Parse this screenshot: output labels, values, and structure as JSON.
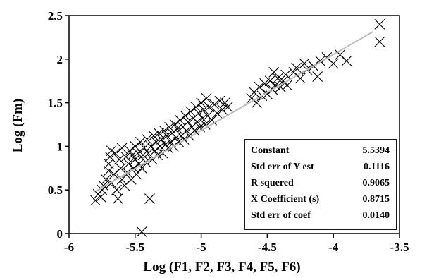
{
  "chart_data": {
    "type": "scatter",
    "title": "",
    "xlabel": "Log (F1, F2, F3, F4, F5, F6)",
    "ylabel": "Log (Fm)",
    "xlim": [
      -6,
      -3.5
    ],
    "ylim": [
      0,
      2.5
    ],
    "x_ticks": [
      "-6",
      "-5.5",
      "-5",
      "-4.5",
      "-4",
      "-3.5"
    ],
    "y_ticks": [
      "0",
      "0.5",
      "1",
      "1.5",
      "2",
      "2.5"
    ],
    "grid": false,
    "marker": "x",
    "regression": {
      "constant": 5.5394,
      "slope": 0.8715,
      "x_range": [
        -5.8,
        -3.7
      ]
    },
    "stats_table": [
      {
        "label": "Constant",
        "value": "5.5394"
      },
      {
        "label": "Std err of Y est",
        "value": "0.1116"
      },
      {
        "label": "R squered",
        "value": "0.9065"
      },
      {
        "label": "X Coefficient (s)",
        "value": "0.8715"
      },
      {
        "label": "Std err of coef",
        "value": "0.0140"
      }
    ],
    "points": [
      [
        -5.8,
        0.38
      ],
      [
        -5.78,
        0.45
      ],
      [
        -5.76,
        0.42
      ],
      [
        -5.75,
        0.5
      ],
      [
        -5.74,
        0.55
      ],
      [
        -5.72,
        0.62
      ],
      [
        -5.7,
        0.72
      ],
      [
        -5.7,
        0.8
      ],
      [
        -5.69,
        0.88
      ],
      [
        -5.68,
        0.95
      ],
      [
        -5.68,
        0.58
      ],
      [
        -5.66,
        0.68
      ],
      [
        -5.65,
        0.92
      ],
      [
        -5.64,
        0.5
      ],
      [
        -5.63,
        0.4
      ],
      [
        -5.62,
        0.85
      ],
      [
        -5.61,
        0.75
      ],
      [
        -5.6,
        0.62
      ],
      [
        -5.6,
        0.98
      ],
      [
        -5.58,
        0.55
      ],
      [
        -5.57,
        0.88
      ],
      [
        -5.56,
        0.7
      ],
      [
        -5.55,
        0.8
      ],
      [
        -5.54,
        0.95
      ],
      [
        -5.53,
        0.62
      ],
      [
        -5.52,
        0.9
      ],
      [
        -5.51,
        0.75
      ],
      [
        -5.5,
        0.85
      ],
      [
        -5.5,
        1.0
      ],
      [
        -5.49,
        0.68
      ],
      [
        -5.48,
        0.92
      ],
      [
        -5.47,
        0.8
      ],
      [
        -5.46,
        1.05
      ],
      [
        -5.45,
        0.75
      ],
      [
        -5.45,
        0.02
      ],
      [
        -5.44,
        0.9
      ],
      [
        -5.43,
        0.98
      ],
      [
        -5.42,
        0.82
      ],
      [
        -5.41,
        1.08
      ],
      [
        -5.4,
        0.92
      ],
      [
        -5.39,
        0.4
      ],
      [
        -5.38,
        1.0
      ],
      [
        -5.37,
        0.85
      ],
      [
        -5.36,
        1.12
      ],
      [
        -5.35,
        0.95
      ],
      [
        -5.34,
        1.05
      ],
      [
        -5.33,
        0.9
      ],
      [
        -5.32,
        1.15
      ],
      [
        -5.31,
        1.0
      ],
      [
        -5.3,
        1.08
      ],
      [
        -5.29,
        0.92
      ],
      [
        -5.28,
        1.18
      ],
      [
        -5.27,
        1.02
      ],
      [
        -5.26,
        1.12
      ],
      [
        -5.25,
        0.98
      ],
      [
        -5.24,
        1.22
      ],
      [
        -5.23,
        1.05
      ],
      [
        -5.22,
        1.15
      ],
      [
        -5.21,
        1.0
      ],
      [
        -5.2,
        1.25
      ],
      [
        -5.19,
        1.1
      ],
      [
        -5.18,
        1.2
      ],
      [
        -5.17,
        1.05
      ],
      [
        -5.16,
        1.3
      ],
      [
        -5.15,
        1.12
      ],
      [
        -5.14,
        1.22
      ],
      [
        -5.13,
        1.08
      ],
      [
        -5.12,
        1.35
      ],
      [
        -5.11,
        1.18
      ],
      [
        -5.1,
        1.28
      ],
      [
        -5.09,
        1.12
      ],
      [
        -5.08,
        1.4
      ],
      [
        -5.07,
        1.22
      ],
      [
        -5.06,
        1.32
      ],
      [
        -5.05,
        1.18
      ],
      [
        -5.04,
        1.45
      ],
      [
        -5.03,
        1.28
      ],
      [
        -5.02,
        1.38
      ],
      [
        -5.01,
        1.22
      ],
      [
        -5.0,
        1.5
      ],
      [
        -4.99,
        1.32
      ],
      [
        -4.98,
        1.42
      ],
      [
        -4.97,
        1.25
      ],
      [
        -4.96,
        1.55
      ],
      [
        -4.95,
        1.35
      ],
      [
        -4.94,
        1.45
      ],
      [
        -4.92,
        1.3
      ],
      [
        -4.9,
        1.48
      ],
      [
        -4.88,
        1.38
      ],
      [
        -4.86,
        1.52
      ],
      [
        -4.84,
        1.42
      ],
      [
        -4.82,
        1.5
      ],
      [
        -4.8,
        1.45
      ],
      [
        -4.62,
        1.55
      ],
      [
        -4.6,
        1.62
      ],
      [
        -4.58,
        1.5
      ],
      [
        -4.56,
        1.68
      ],
      [
        -4.54,
        1.58
      ],
      [
        -4.52,
        1.72
      ],
      [
        -4.5,
        1.6
      ],
      [
        -4.48,
        1.75
      ],
      [
        -4.46,
        1.65
      ],
      [
        -4.44,
        1.7
      ],
      [
        -4.42,
        1.78
      ],
      [
        -4.45,
        1.85
      ],
      [
        -4.4,
        1.68
      ],
      [
        -4.38,
        1.75
      ],
      [
        -4.36,
        1.82
      ],
      [
        -4.35,
        1.7
      ],
      [
        -4.3,
        1.85
      ],
      [
        -4.28,
        1.9
      ],
      [
        -4.25,
        1.78
      ],
      [
        -4.22,
        1.95
      ],
      [
        -4.2,
        1.88
      ],
      [
        -4.15,
        1.92
      ],
      [
        -4.12,
        1.8
      ],
      [
        -4.1,
        1.98
      ],
      [
        -4.05,
        2.02
      ],
      [
        -4.0,
        1.95
      ],
      [
        -3.95,
        2.05
      ],
      [
        -3.9,
        1.98
      ],
      [
        -3.65,
        2.4
      ],
      [
        -3.65,
        2.2
      ]
    ]
  }
}
